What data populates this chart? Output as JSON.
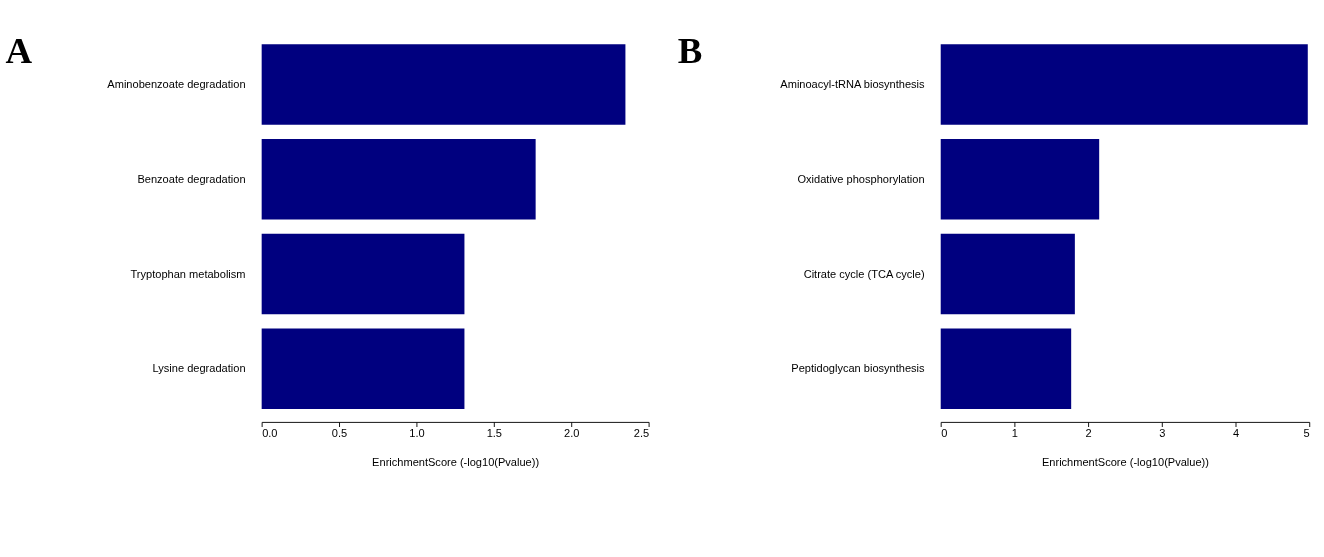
{
  "chart_data": [
    {
      "type": "bar",
      "orientation": "horizontal",
      "title": "A",
      "xlabel": "EnrichmentScore (-log10(Pvalue))",
      "categories": [
        "Aminobenzoate degradation",
        "Benzoate degradation",
        "Tryptophan metabolism",
        "Lysine degradation"
      ],
      "values": [
        2.35,
        1.77,
        1.31,
        1.31
      ],
      "color": "#00007f",
      "xlim": [
        0,
        2.5
      ],
      "xticks": [
        {
          "value": 0,
          "label": "0.0"
        },
        0.5,
        {
          "value": 1,
          "label": "1.0"
        },
        1.5,
        {
          "value": 2,
          "label": "2.0"
        },
        2.5
      ],
      "grid": false
    },
    {
      "type": "bar",
      "orientation": "horizontal",
      "title": "B",
      "xlabel": "EnrichmentScore (-log10(Pvalue))",
      "categories": [
        "Aminoacyl-tRNA biosynthesis",
        "Oxidative phosphorylation",
        "Citrate cycle (TCA cycle)",
        "Peptidoglycan biosynthesis"
      ],
      "values": [
        4.98,
        2.15,
        1.82,
        1.77
      ],
      "color": "#00007f",
      "xlim": [
        0,
        5
      ],
      "xticks": [
        0,
        1,
        2,
        3,
        4,
        5
      ],
      "grid": false
    }
  ]
}
